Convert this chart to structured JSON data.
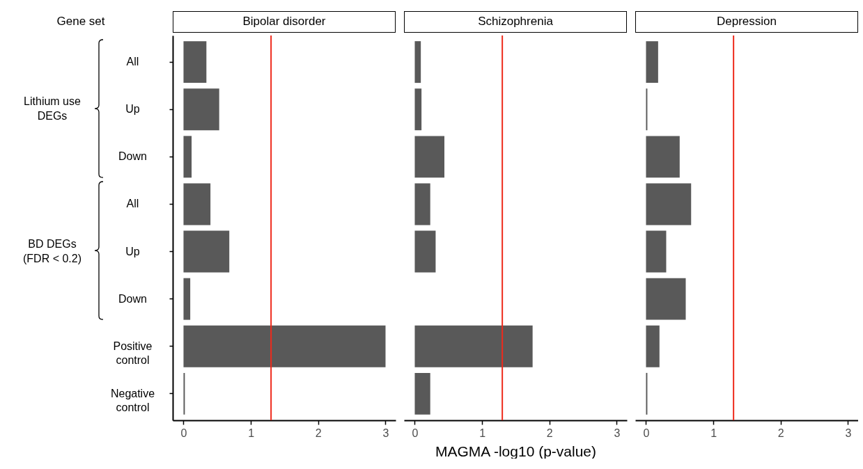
{
  "chart_data": [
    {
      "type": "bar",
      "orientation": "horizontal",
      "title": "Bipolar disorder",
      "ylabel": "Gene set",
      "categories": [
        "All",
        "Up",
        "Down",
        "All",
        "Up",
        "Down",
        "Positive control",
        "Negative control"
      ],
      "values": [
        0.34,
        0.53,
        0.12,
        0.4,
        0.68,
        0.1,
        3.0,
        0.02
      ],
      "color": "#595959",
      "xlim": [
        -0.16,
        3.15
      ],
      "xticks": [
        0,
        1,
        2,
        3
      ],
      "grid": false,
      "ref_lines": [
        {
          "axis": "x",
          "value": 1.3,
          "color": "#ee2a1b"
        }
      ],
      "annotations": [
        "Lithium use DEGs",
        "BD DEGs (FDR < 0.2)"
      ]
    },
    {
      "type": "bar",
      "orientation": "horizontal",
      "title": "Schizophrenia",
      "xlabel": "MAGMA -log10 (p-value)",
      "values": [
        0.09,
        0.1,
        0.44,
        0.23,
        0.31,
        0,
        1.75,
        0.23
      ],
      "color": "#595959",
      "xlim": [
        -0.16,
        3.15
      ],
      "xticks": [
        0,
        1,
        2,
        3
      ],
      "grid": false,
      "tick_labels": "x",
      "ref_lines": [
        {
          "axis": "x",
          "value": 1.3,
          "color": "#ee2a1b"
        }
      ]
    },
    {
      "type": "bar",
      "orientation": "horizontal",
      "title": "Depression",
      "values": [
        0.18,
        0.02,
        0.5,
        0.67,
        0.3,
        0.59,
        0.2,
        0.02
      ],
      "color": "#595959",
      "xlim": [
        -0.16,
        3.15
      ],
      "xticks": [
        0,
        1,
        2,
        3
      ],
      "grid": false,
      "tick_labels": "x",
      "ref_lines": [
        {
          "axis": "x",
          "value": 1.3,
          "color": "#ee2a1b"
        }
      ]
    }
  ]
}
